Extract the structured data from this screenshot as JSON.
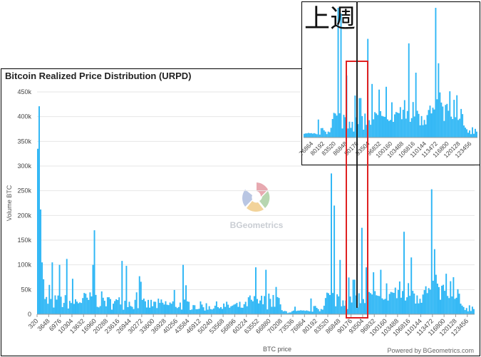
{
  "chart_data": [
    {
      "type": "bar",
      "title": "Bitcoin Realized Price Distribution (URPD)",
      "xlabel": "BTC price",
      "ylabel": "Volume BTC",
      "ylim": [
        0,
        450000
      ],
      "y_ticks": [
        0,
        50000,
        100000,
        150000,
        200000,
        250000,
        300000,
        350000,
        400000,
        450000
      ],
      "y_tick_labels": [
        "0",
        "50k",
        "100k",
        "150k",
        "200k",
        "250k",
        "300k",
        "350k",
        "400k",
        "450k"
      ],
      "x_tick_labels": [
        "320",
        "3648",
        "6976",
        "10304",
        "13632",
        "16960",
        "20288",
        "23616",
        "26944",
        "30272",
        "33600",
        "36928",
        "40256",
        "43584",
        "46912",
        "50240",
        "53568",
        "56896",
        "60224",
        "63552",
        "66880",
        "70208",
        "73536",
        "76864",
        "80192",
        "83520",
        "86848",
        "90176",
        "93504",
        "96832",
        "100160",
        "103488",
        "106816",
        "110144",
        "113472",
        "116800",
        "120128",
        "123456"
      ],
      "bin_width": 416,
      "x_min": 320,
      "x_max": 125536,
      "bar_color": "#2db6f5",
      "grid": true,
      "legend": "none",
      "notable_bars": [
        {
          "price": 320,
          "value": 335000
        },
        {
          "price": 736,
          "value": 421000
        },
        {
          "price": 1152,
          "value": 212000
        },
        {
          "price": 1568,
          "value": 105000
        },
        {
          "price": 4480,
          "value": 105000
        },
        {
          "price": 6560,
          "value": 100000
        },
        {
          "price": 8640,
          "value": 112000
        },
        {
          "price": 16544,
          "value": 170000
        },
        {
          "price": 16128,
          "value": 100000
        },
        {
          "price": 24320,
          "value": 108000
        },
        {
          "price": 25568,
          "value": 98000
        },
        {
          "price": 29312,
          "value": 77000
        },
        {
          "price": 41792,
          "value": 100000
        },
        {
          "price": 62592,
          "value": 95000
        },
        {
          "price": 65504,
          "value": 90000
        },
        {
          "price": 84544,
          "value": 285000
        },
        {
          "price": 85376,
          "value": 220000
        },
        {
          "price": 87040,
          "value": 110000
        },
        {
          "price": 91200,
          "value": 70000
        },
        {
          "price": 93280,
          "value": 175000
        },
        {
          "price": 94528,
          "value": 95000
        },
        {
          "price": 96608,
          "value": 85000
        },
        {
          "price": 98688,
          "value": 90000
        },
        {
          "price": 105344,
          "value": 167000
        },
        {
          "price": 107424,
          "value": 115000
        },
        {
          "price": 113248,
          "value": 253000
        },
        {
          "price": 114496,
          "value": 80000
        },
        {
          "price": 117408,
          "value": 82000
        },
        {
          "price": 119488,
          "value": 75000
        }
      ]
    },
    {
      "type": "bar",
      "title": "上週",
      "x_tick_labels": [
        "76864",
        "80192",
        "83520",
        "86848",
        "90176",
        "93504",
        "96832",
        "100160",
        "103488",
        "106816",
        "110144",
        "113472",
        "116800",
        "120128",
        "123456"
      ],
      "x_min": 74368,
      "x_max": 125536,
      "bar_color": "#2db6f5"
    }
  ],
  "branding": {
    "watermark": "BGeometrics",
    "credit": "Powered by BGeometrics.com"
  }
}
